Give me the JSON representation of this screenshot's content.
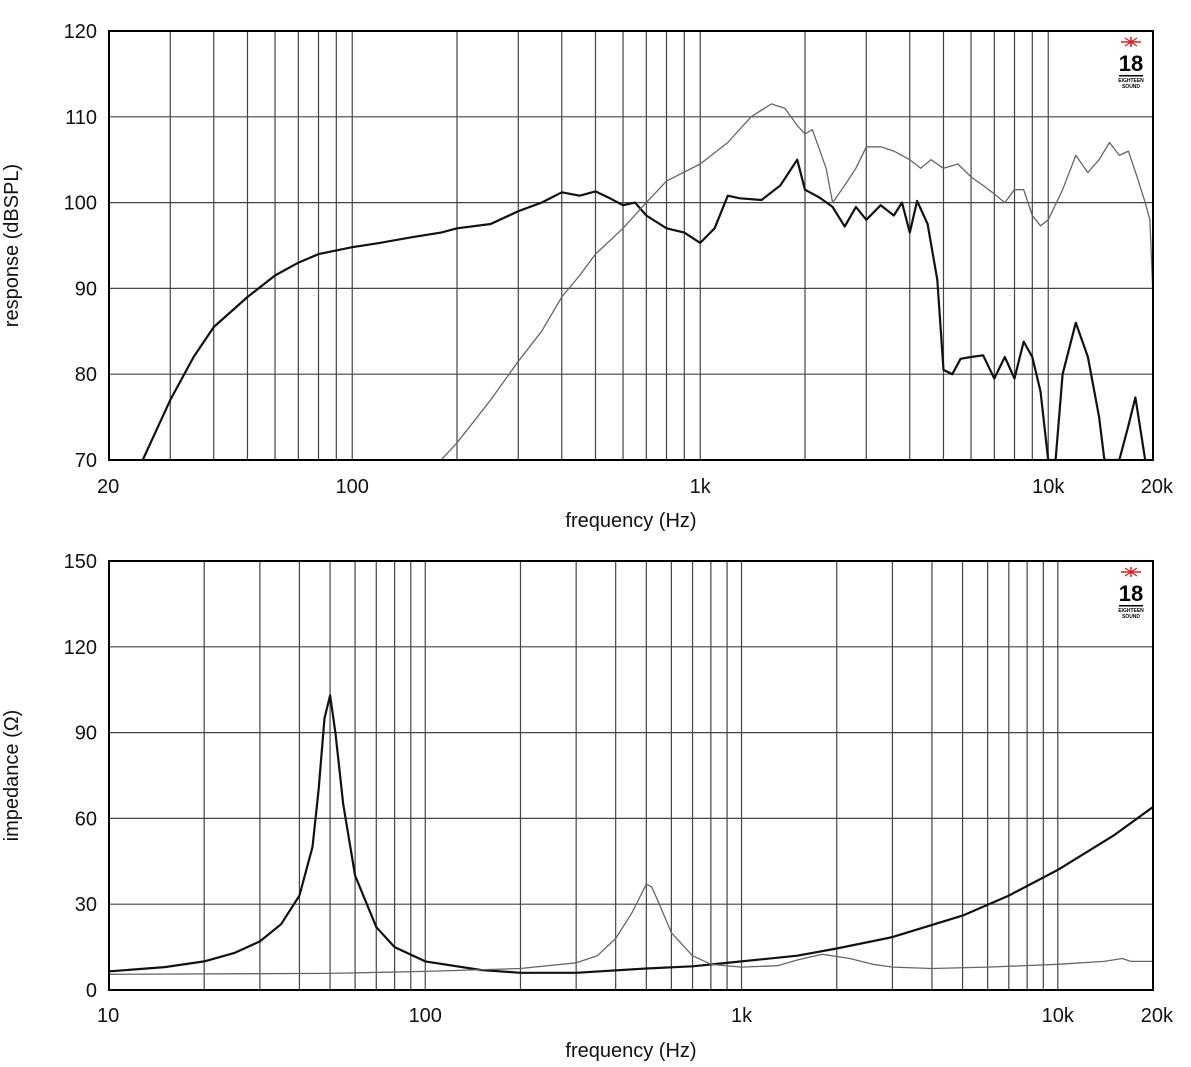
{
  "chart_data": [
    {
      "type": "line",
      "ylabel": "response (dBSPL)",
      "xlabel": "frequency (Hz)",
      "x_scale": "log",
      "xlim": [
        20,
        20000
      ],
      "ylim": [
        70,
        120
      ],
      "grid": true,
      "x_tick_labels": [
        {
          "v": 20,
          "t": "20"
        },
        {
          "v": 100,
          "t": "100"
        },
        {
          "v": 1000,
          "t": "1k"
        },
        {
          "v": 10000,
          "t": "10k"
        },
        {
          "v": 20000,
          "t": "20k"
        }
      ],
      "y_ticks": [
        70,
        80,
        90,
        100,
        110,
        120
      ],
      "logo": {
        "text": "18",
        "subtext": "EIGHTEEN SOUND"
      },
      "series": [
        {
          "color": "#111111",
          "width": 2.2,
          "points": [
            [
              25,
              70
            ],
            [
              30,
              77
            ],
            [
              35,
              82
            ],
            [
              40,
              85.5
            ],
            [
              50,
              89
            ],
            [
              60,
              91.5
            ],
            [
              70,
              93
            ],
            [
              80,
              94
            ],
            [
              100,
              94.8
            ],
            [
              120,
              95.3
            ],
            [
              150,
              96
            ],
            [
              180,
              96.5
            ],
            [
              200,
              97
            ],
            [
              250,
              97.5
            ],
            [
              300,
              99
            ],
            [
              350,
              100
            ],
            [
              400,
              101.2
            ],
            [
              450,
              100.8
            ],
            [
              500,
              101.3
            ],
            [
              550,
              100.5
            ],
            [
              600,
              99.7
            ],
            [
              650,
              100
            ],
            [
              700,
              98.5
            ],
            [
              800,
              97
            ],
            [
              900,
              96.5
            ],
            [
              1000,
              95.3
            ],
            [
              1100,
              97
            ],
            [
              1200,
              100.8
            ],
            [
              1300,
              100.5
            ],
            [
              1500,
              100.3
            ],
            [
              1700,
              102
            ],
            [
              1900,
              105
            ],
            [
              2000,
              101.5
            ],
            [
              2200,
              100.6
            ],
            [
              2400,
              99.5
            ],
            [
              2600,
              97.2
            ],
            [
              2800,
              99.5
            ],
            [
              3000,
              98
            ],
            [
              3300,
              99.7
            ],
            [
              3600,
              98.5
            ],
            [
              3800,
              100
            ],
            [
              4000,
              96.5
            ],
            [
              4200,
              100.2
            ],
            [
              4500,
              97.5
            ],
            [
              4800,
              91
            ],
            [
              5000,
              80.5
            ],
            [
              5300,
              80
            ],
            [
              5600,
              81.8
            ],
            [
              6000,
              82
            ],
            [
              6500,
              82.2
            ],
            [
              7000,
              79.5
            ],
            [
              7500,
              82
            ],
            [
              8000,
              79.5
            ],
            [
              8500,
              83.8
            ],
            [
              9000,
              82
            ],
            [
              9500,
              78
            ],
            [
              10000,
              70
            ],
            [
              10500,
              70
            ],
            [
              11000,
              80
            ],
            [
              12000,
              86
            ],
            [
              13000,
              82
            ],
            [
              14000,
              75
            ],
            [
              14500,
              70
            ],
            [
              16000,
              70
            ],
            [
              17000,
              74
            ],
            [
              17800,
              77.3
            ],
            [
              18500,
              73
            ],
            [
              19000,
              70
            ]
          ]
        },
        {
          "color": "#666666",
          "width": 1.3,
          "points": [
            [
              180,
              70
            ],
            [
              200,
              72
            ],
            [
              250,
              77
            ],
            [
              300,
              81.5
            ],
            [
              350,
              85
            ],
            [
              400,
              89
            ],
            [
              450,
              91.5
            ],
            [
              500,
              94
            ],
            [
              600,
              97
            ],
            [
              700,
              100
            ],
            [
              800,
              102.5
            ],
            [
              1000,
              104.5
            ],
            [
              1200,
              107
            ],
            [
              1400,
              110
            ],
            [
              1600,
              111.5
            ],
            [
              1750,
              111
            ],
            [
              1900,
              109
            ],
            [
              2000,
              108
            ],
            [
              2100,
              108.5
            ],
            [
              2300,
              104
            ],
            [
              2400,
              100
            ],
            [
              2600,
              102
            ],
            [
              2800,
              104
            ],
            [
              3000,
              106.5
            ],
            [
              3300,
              106.5
            ],
            [
              3600,
              106
            ],
            [
              4000,
              105
            ],
            [
              4300,
              104
            ],
            [
              4600,
              105
            ],
            [
              5000,
              104
            ],
            [
              5500,
              104.5
            ],
            [
              6000,
              103
            ],
            [
              6500,
              102
            ],
            [
              7000,
              101
            ],
            [
              7500,
              100
            ],
            [
              8000,
              101.5
            ],
            [
              8500,
              101.5
            ],
            [
              9000,
              98.5
            ],
            [
              9500,
              97.3
            ],
            [
              10000,
              98
            ],
            [
              11000,
              101.5
            ],
            [
              12000,
              105.5
            ],
            [
              13000,
              103.5
            ],
            [
              14000,
              105
            ],
            [
              15000,
              107
            ],
            [
              16000,
              105.5
            ],
            [
              17000,
              106
            ],
            [
              18000,
              103
            ],
            [
              19000,
              100
            ],
            [
              19600,
              98
            ],
            [
              20000,
              89
            ]
          ]
        }
      ]
    },
    {
      "type": "line",
      "ylabel": "impedance (Ω)",
      "xlabel": "frequency (Hz)",
      "x_scale": "log",
      "xlim": [
        10,
        20000
      ],
      "ylim": [
        0,
        150
      ],
      "grid": true,
      "x_tick_labels": [
        {
          "v": 10,
          "t": "10"
        },
        {
          "v": 100,
          "t": "100"
        },
        {
          "v": 1000,
          "t": "1k"
        },
        {
          "v": 10000,
          "t": "10k"
        },
        {
          "v": 20000,
          "t": "20k"
        }
      ],
      "y_ticks": [
        0,
        30,
        60,
        90,
        120,
        150
      ],
      "logo": {
        "text": "18",
        "subtext": "EIGHTEEN SOUND"
      },
      "series": [
        {
          "color": "#111111",
          "width": 2.2,
          "points": [
            [
              10,
              6.5
            ],
            [
              15,
              8
            ],
            [
              20,
              10
            ],
            [
              25,
              13
            ],
            [
              30,
              17
            ],
            [
              35,
              23
            ],
            [
              40,
              33
            ],
            [
              44,
              50
            ],
            [
              46,
              70
            ],
            [
              48,
              95
            ],
            [
              50,
              103
            ],
            [
              52,
              90
            ],
            [
              55,
              65
            ],
            [
              60,
              40
            ],
            [
              70,
              22
            ],
            [
              80,
              15
            ],
            [
              100,
              10
            ],
            [
              150,
              7
            ],
            [
              200,
              6
            ],
            [
              300,
              6
            ],
            [
              500,
              7.5
            ],
            [
              700,
              8.3
            ],
            [
              1000,
              10
            ],
            [
              1500,
              12
            ],
            [
              2000,
              14.5
            ],
            [
              3000,
              18.5
            ],
            [
              5000,
              26
            ],
            [
              7000,
              33
            ],
            [
              10000,
              42
            ],
            [
              15000,
              54
            ],
            [
              20000,
              64
            ]
          ]
        },
        {
          "color": "#666666",
          "width": 1.3,
          "points": [
            [
              10,
              5.5
            ],
            [
              50,
              5.8
            ],
            [
              100,
              6.5
            ],
            [
              200,
              7.5
            ],
            [
              300,
              9.5
            ],
            [
              350,
              12
            ],
            [
              400,
              18
            ],
            [
              450,
              27
            ],
            [
              500,
              37
            ],
            [
              520,
              36
            ],
            [
              550,
              30
            ],
            [
              600,
              20
            ],
            [
              700,
              12
            ],
            [
              800,
              9
            ],
            [
              1000,
              8
            ],
            [
              1300,
              8.5
            ],
            [
              1500,
              10.5
            ],
            [
              1800,
              12.5
            ],
            [
              2200,
              11
            ],
            [
              2600,
              9
            ],
            [
              3000,
              8
            ],
            [
              4000,
              7.5
            ],
            [
              6000,
              8
            ],
            [
              10000,
              9
            ],
            [
              14000,
              10
            ],
            [
              16000,
              11
            ],
            [
              17000,
              10
            ],
            [
              20000,
              10
            ]
          ]
        }
      ]
    }
  ]
}
